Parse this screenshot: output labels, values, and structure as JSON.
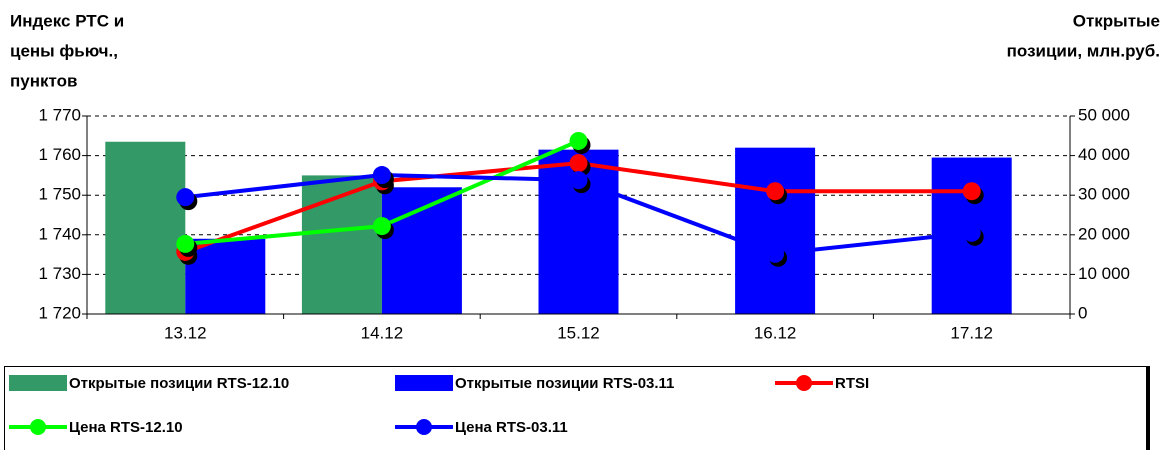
{
  "chart_data": {
    "type": "bar-line",
    "y_label": [
      "Индекс РТС и",
      "цены фьюч.,",
      "пунктов"
    ],
    "y2_label": [
      "Открытые",
      "позиции, млн.руб."
    ],
    "categories": [
      "13.12",
      "14.12",
      "15.12",
      "16.12",
      "17.12"
    ],
    "ylim": [
      1720,
      1770
    ],
    "yticks": [
      {
        "value": 1720,
        "label": "1 720"
      },
      {
        "value": 1730,
        "label": "1 730"
      },
      {
        "value": 1740,
        "label": "1 740"
      },
      {
        "value": 1750,
        "label": "1 750"
      },
      {
        "value": 1760,
        "label": "1 760"
      },
      {
        "value": 1770,
        "label": "1 770"
      }
    ],
    "y2lim": [
      0,
      50000
    ],
    "y2ticks": [
      0,
      {
        "value": 10000,
        "label": "10 000"
      },
      {
        "value": 20000,
        "label": "20 000"
      },
      {
        "value": 30000,
        "label": "30 000"
      },
      {
        "value": 40000,
        "label": "40 000"
      },
      {
        "value": 50000,
        "label": "50 000"
      }
    ],
    "grid": true,
    "series": [
      {
        "name": "Открытые позиции RTS-12.10",
        "type": "bar",
        "axis": "y2",
        "color": "#339966",
        "values": [
          43500,
          35000,
          null,
          null,
          null
        ]
      },
      {
        "name": "Открытые позиции RTS-03.11",
        "type": "bar",
        "axis": "y2",
        "color": "#0000ff",
        "values": [
          19000,
          32000,
          41500,
          42000,
          39500
        ]
      },
      {
        "name": "RTSI",
        "type": "line",
        "color": "#ff0000",
        "values": [
          1735.7,
          1753.5,
          1758.1,
          1751,
          1751
        ]
      },
      {
        "name": "Цена RTS-12.10",
        "type": "line",
        "color": "#00ff00",
        "values": [
          1737.7,
          1742.2,
          1763.7,
          null,
          null
        ]
      },
      {
        "name": "Цена RTS-03.11",
        "type": "line",
        "color": "#0000ff",
        "values": [
          1749.5,
          1755.1,
          1753.8,
          1735.2,
          1740.5
        ]
      }
    ]
  }
}
